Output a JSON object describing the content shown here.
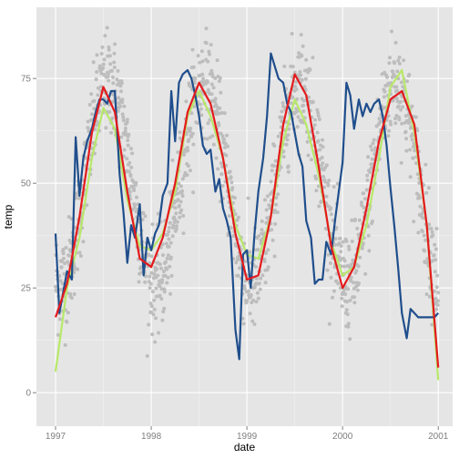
{
  "chart_data": {
    "type": "line",
    "xlabel": "date",
    "ylabel": "temp",
    "xlim": [
      1996.8,
      2001.15
    ],
    "ylim": [
      -8,
      92
    ],
    "x_ticks": [
      {
        "value": 1997,
        "label": "1997"
      },
      {
        "value": 1998,
        "label": "1998"
      },
      {
        "value": 1999,
        "label": "1999"
      },
      {
        "value": 2000,
        "label": "2000"
      },
      {
        "value": 2001,
        "label": "2001"
      }
    ],
    "y_ticks": [
      {
        "value": 0,
        "label": "0"
      },
      {
        "value": 25,
        "label": "25"
      },
      {
        "value": 50,
        "label": "50"
      },
      {
        "value": 75,
        "label": "75"
      }
    ],
    "grid": true,
    "legend": "none",
    "colors": {
      "panel": "#e5e5e5",
      "grid_major": "#ffffff",
      "grid_minor": "#f2f2f2",
      "points": "#bdbdbd",
      "blue": "#1f4e8c",
      "red": "#e41a1c",
      "green": "#b8e86a"
    },
    "points": {
      "x_start": 1997.0,
      "x_end": 2001.0,
      "count": 1461,
      "seasonal_mean": 50,
      "seasonal_amplitude": 24,
      "peak_phase": 0.55,
      "spread": 11
    },
    "series": [
      {
        "color": "#1f4e8c",
        "x": [
          1997.0,
          1997.04,
          1997.08,
          1997.12,
          1997.17,
          1997.21,
          1997.25,
          1997.29,
          1997.33,
          1997.38,
          1997.42,
          1997.46,
          1997.5,
          1997.54,
          1997.58,
          1997.62,
          1997.67,
          1997.71,
          1997.75,
          1997.79,
          1997.83,
          1997.88,
          1997.92,
          1997.96,
          1998.0,
          1998.04,
          1998.08,
          1998.12,
          1998.17,
          1998.21,
          1998.25,
          1998.29,
          1998.33,
          1998.38,
          1998.42,
          1998.46,
          1998.5,
          1998.54,
          1998.58,
          1998.62,
          1998.67,
          1998.71,
          1998.75,
          1998.79,
          1998.83,
          1998.88,
          1998.92,
          1998.96,
          1999.0,
          1999.04,
          1999.08,
          1999.12,
          1999.17,
          1999.21,
          1999.25,
          1999.29,
          1999.33,
          1999.38,
          1999.42,
          1999.46,
          1999.5,
          1999.54,
          1999.58,
          1999.62,
          1999.67,
          1999.71,
          1999.75,
          1999.79,
          1999.83,
          1999.88,
          1999.92,
          1999.96,
          2000.0,
          2000.04,
          2000.08,
          2000.12,
          2000.17,
          2000.21,
          2000.25,
          2000.29,
          2000.33,
          2000.38,
          2000.42,
          2000.46,
          2000.5,
          2000.54,
          2000.58,
          2000.62,
          2000.67,
          2000.71,
          2000.75,
          2000.79,
          2000.83,
          2000.88,
          2000.92,
          2000.96,
          2001.0
        ],
        "y": [
          38,
          19,
          24,
          29,
          27,
          61,
          47,
          56,
          60,
          63,
          67,
          70,
          70,
          69,
          72,
          72,
          52,
          43,
          31,
          40,
          37,
          45,
          28,
          37,
          34,
          38,
          40,
          47,
          50,
          72,
          60,
          74,
          76,
          77,
          75,
          71,
          66,
          59,
          57,
          58,
          48,
          51,
          44,
          41,
          37,
          15,
          8,
          33,
          34,
          25,
          38,
          48,
          56,
          66,
          81,
          78,
          75,
          74,
          69,
          67,
          62,
          57,
          54,
          41,
          37,
          26,
          27,
          27,
          36,
          33,
          41,
          48,
          55,
          74,
          71,
          63,
          70,
          66,
          69,
          67,
          69,
          70,
          66,
          59,
          49,
          40,
          30,
          19,
          13,
          20,
          19,
          18,
          18,
          18,
          18,
          18,
          19
        ]
      },
      {
        "color": "#b8e86a",
        "x": [
          1997.0,
          1997.12,
          1997.25,
          1997.38,
          1997.5,
          1997.62,
          1997.75,
          1997.88,
          1998.0,
          1998.12,
          1998.25,
          1998.38,
          1998.5,
          1998.62,
          1998.75,
          1998.88,
          1999.0,
          1999.12,
          1999.25,
          1999.38,
          1999.5,
          1999.62,
          1999.75,
          1999.88,
          2000.0,
          2000.12,
          2000.25,
          2000.38,
          2000.5,
          2000.62,
          2000.75,
          2000.88,
          2001.0
        ],
        "y": [
          5,
          25,
          37,
          56,
          68,
          63,
          46,
          35,
          34,
          38,
          48,
          66,
          72,
          66,
          56,
          40,
          33,
          32,
          42,
          60,
          70,
          64,
          52,
          36,
          28,
          30,
          40,
          56,
          73,
          77,
          62,
          40,
          3
        ]
      },
      {
        "color": "#e41a1c",
        "x": [
          1997.0,
          1997.12,
          1997.25,
          1997.38,
          1997.5,
          1997.62,
          1997.75,
          1997.88,
          1998.0,
          1998.12,
          1998.25,
          1998.38,
          1998.5,
          1998.62,
          1998.75,
          1998.88,
          1999.0,
          1999.12,
          1999.25,
          1999.38,
          1999.5,
          1999.62,
          1999.75,
          1999.88,
          2000.0,
          2000.12,
          2000.25,
          2000.38,
          2000.5,
          2000.62,
          2000.75,
          2000.88,
          2001.0
        ],
        "y": [
          18,
          26,
          42,
          62,
          73,
          67,
          48,
          32,
          30,
          37,
          50,
          67,
          74,
          69,
          56,
          38,
          27,
          28,
          42,
          64,
          76,
          71,
          54,
          35,
          25,
          30,
          44,
          60,
          70,
          72,
          64,
          40,
          6
        ]
      }
    ]
  }
}
